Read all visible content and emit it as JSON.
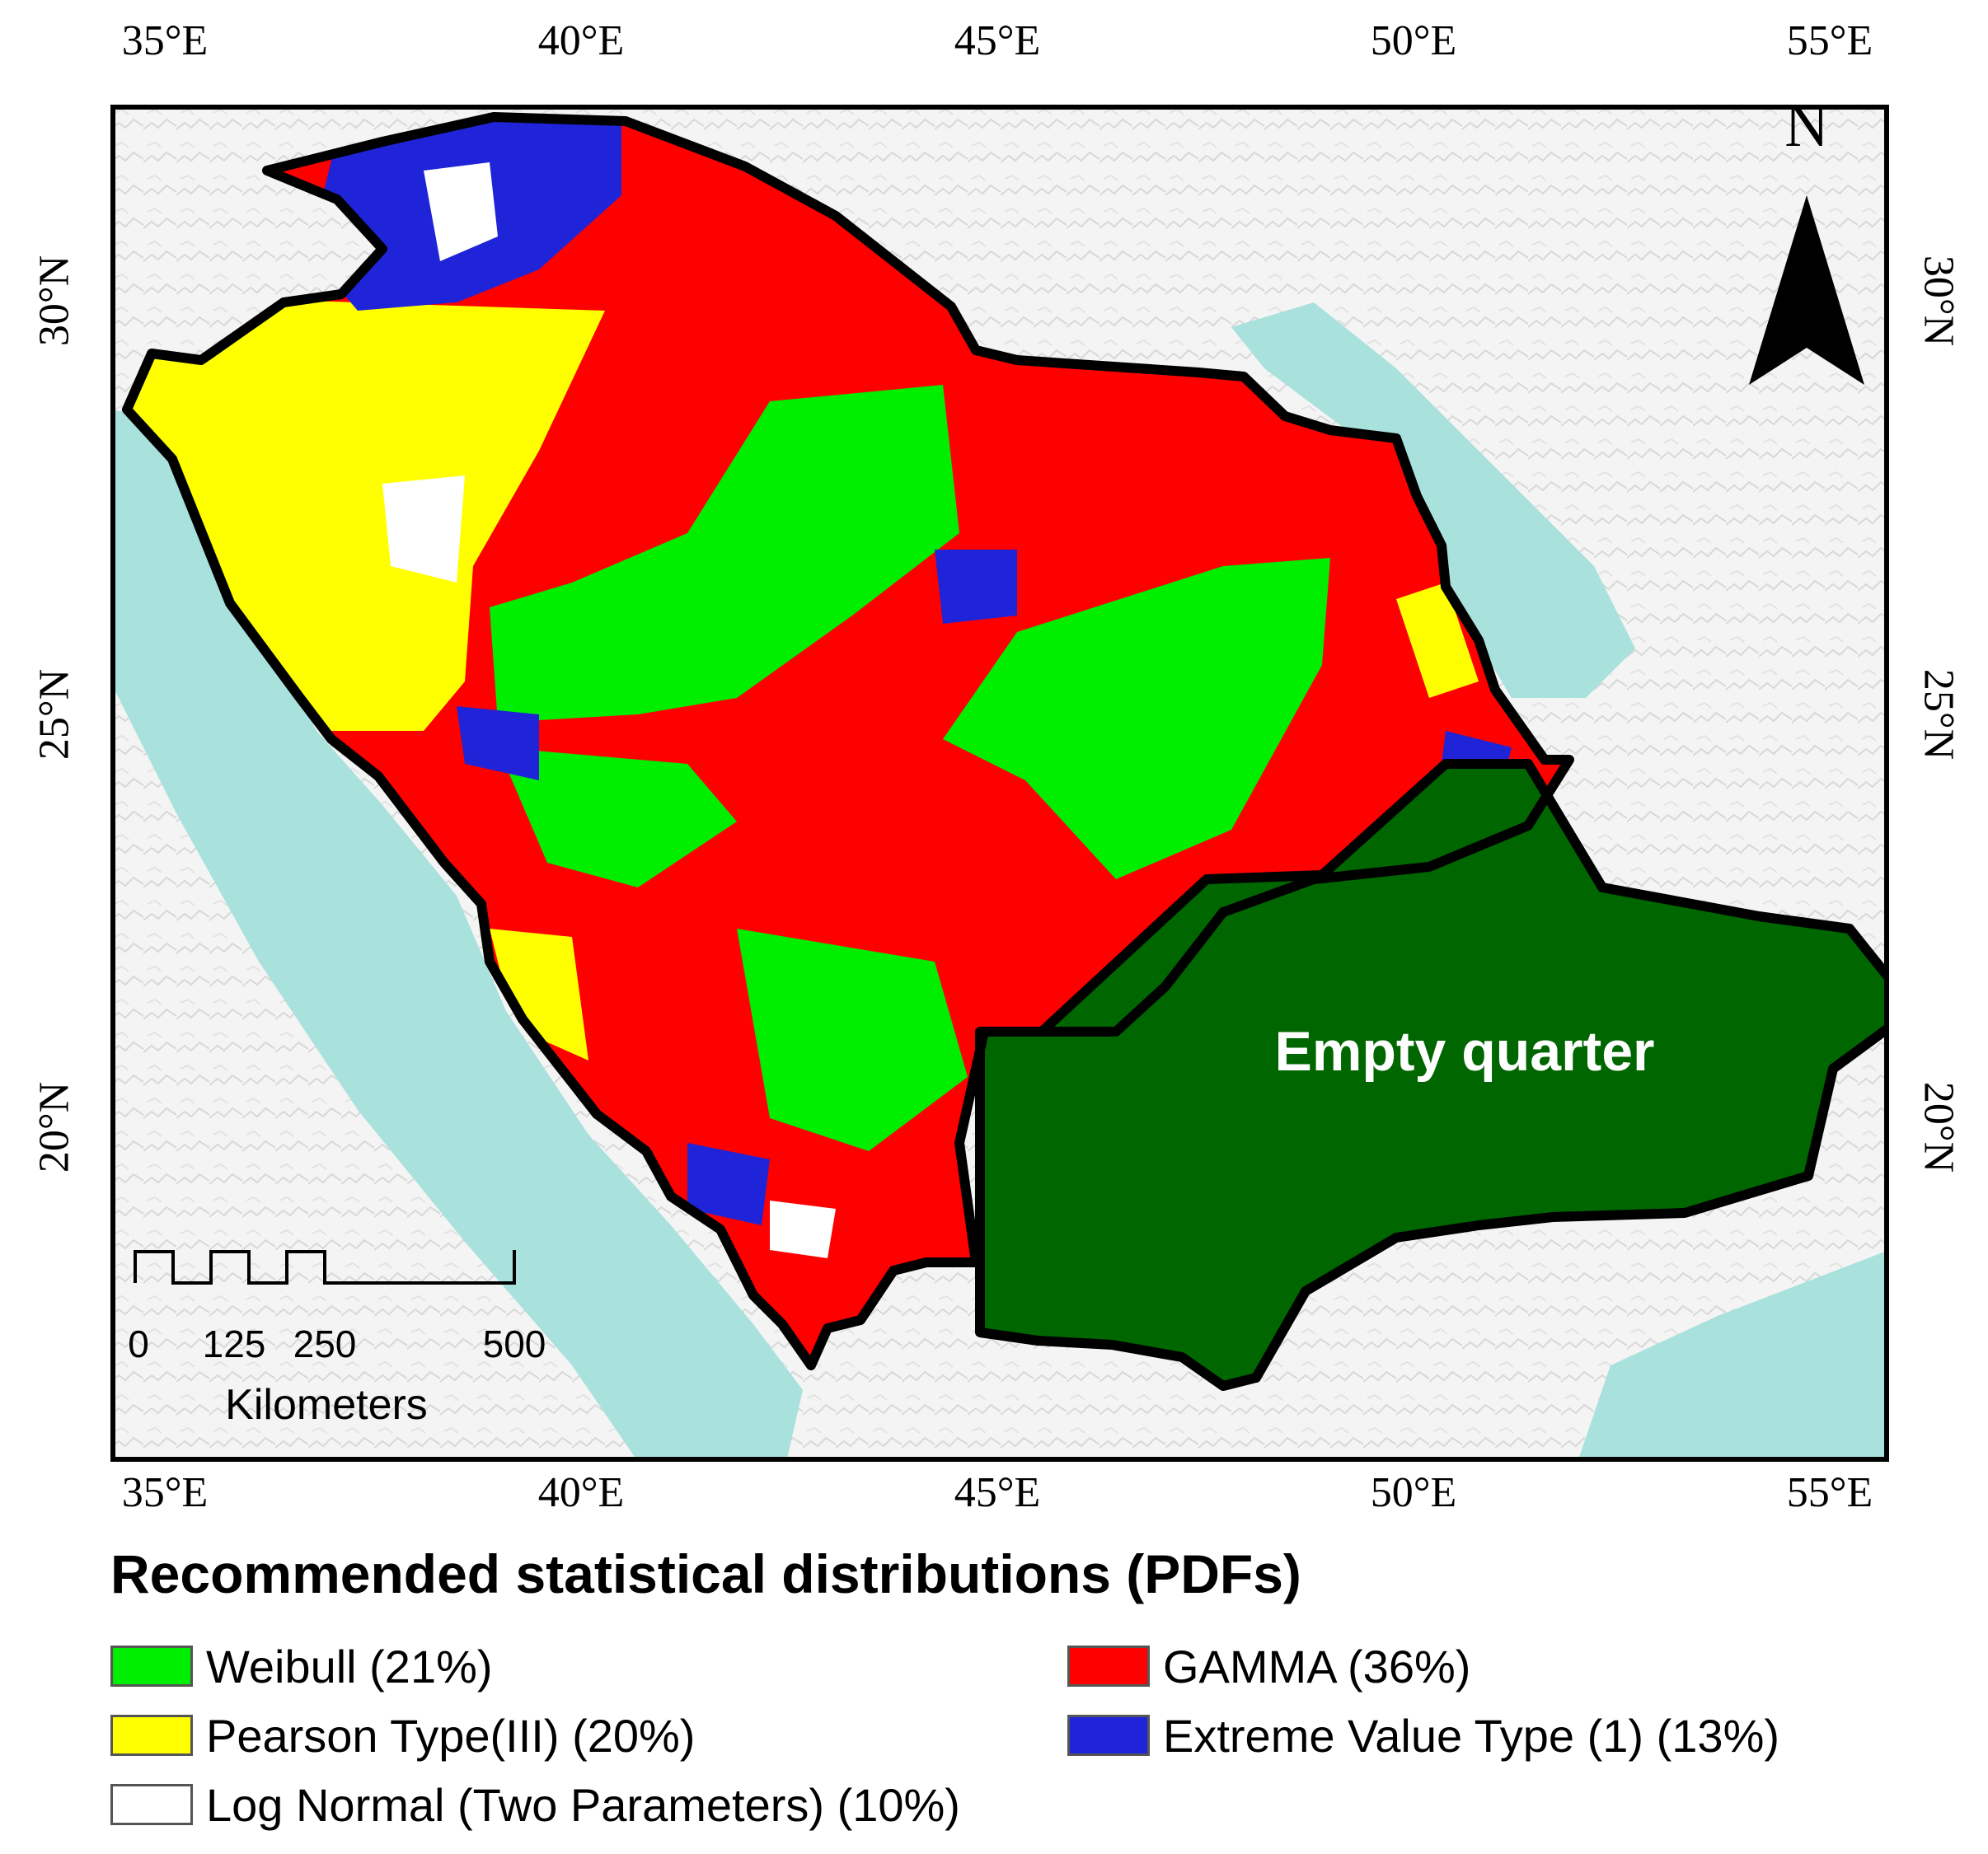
{
  "map": {
    "lon_labels": [
      "35°E",
      "40°E",
      "45°E",
      "50°E",
      "55°E"
    ],
    "lat_labels": [
      "30°N",
      "25°N",
      "20°N"
    ],
    "north_arrow": {
      "label": "N",
      "icon": "north-arrow-icon"
    },
    "region_label": "Empty quarter",
    "scale_bar": {
      "labels": [
        "0",
        "125",
        "250",
        "500"
      ],
      "unit": "Kilometers"
    },
    "colors": {
      "weibull": "#00ee00",
      "gamma": "#ff0000",
      "pearson": "#ffff00",
      "extreme": "#1f24d8",
      "lognormal": "#ffffff",
      "empty_quarter": "#006600",
      "sea": "#a9e1dd",
      "land": "#f4f4f4"
    }
  },
  "legend": {
    "title": "Recommended statistical distributions (PDFs)",
    "items": [
      {
        "label": "Weibull (21%)",
        "color": "#00ee00"
      },
      {
        "label": "GAMMA (36%)",
        "color": "#ff0000"
      },
      {
        "label": "Pearson Type(III) (20%)",
        "color": "#ffff00"
      },
      {
        "label": "Extreme Value Type (1) (13%)",
        "color": "#1f24d8"
      },
      {
        "label": "Log Normal (Two Parameters) (10%)",
        "color": "#ffffff"
      }
    ]
  }
}
